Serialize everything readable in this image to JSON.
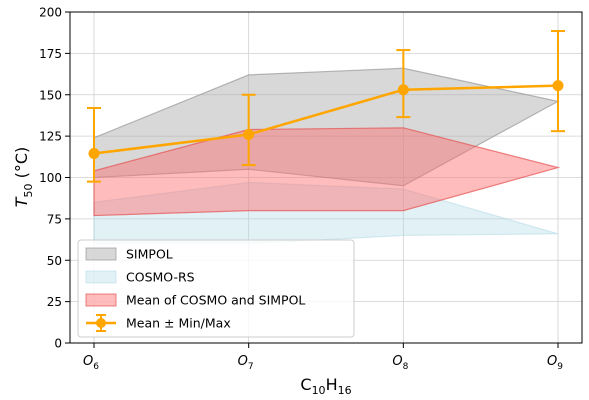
{
  "chart_data": {
    "type": "area",
    "xlabel_base": "C",
    "xlabel_sub1": "10",
    "xlabel_mid": "H",
    "xlabel_sub2": "16",
    "ylabel_main": "T",
    "ylabel_sub": "50",
    "ylabel_unit": " (°C)",
    "categories": [
      {
        "base": "O",
        "sub": "6"
      },
      {
        "base": "O",
        "sub": "7"
      },
      {
        "base": "O",
        "sub": "8"
      },
      {
        "base": "O",
        "sub": "9"
      }
    ],
    "ylim": [
      0,
      200
    ],
    "yticks": [
      0,
      25,
      50,
      75,
      100,
      125,
      150,
      175,
      200
    ],
    "grid": true,
    "legend_position": "lower-left",
    "series": [
      {
        "name": "SIMPOL",
        "kind": "band",
        "color": "#a9a9a9",
        "lower": [
          100,
          105,
          95,
          146
        ],
        "upper": [
          124,
          162,
          166,
          146
        ]
      },
      {
        "name": "COSMO-RS",
        "kind": "band",
        "color": "#add8e6",
        "lower": [
          60,
          60,
          65,
          66
        ],
        "upper": [
          85,
          97,
          93,
          66
        ]
      },
      {
        "name": "Mean of COSMO and SIMPOL",
        "kind": "band",
        "color": "#ff6b6b",
        "lower": [
          77,
          80,
          80,
          106
        ],
        "upper": [
          104,
          129,
          130,
          106
        ]
      },
      {
        "name": "Mean ± Min/Max",
        "kind": "errorline",
        "color": "#ffa500",
        "values": [
          114.5,
          126,
          153,
          155.5
        ],
        "err_low": [
          97.5,
          107.5,
          136.5,
          128
        ],
        "err_high": [
          142,
          150,
          177,
          188.5
        ]
      }
    ]
  }
}
